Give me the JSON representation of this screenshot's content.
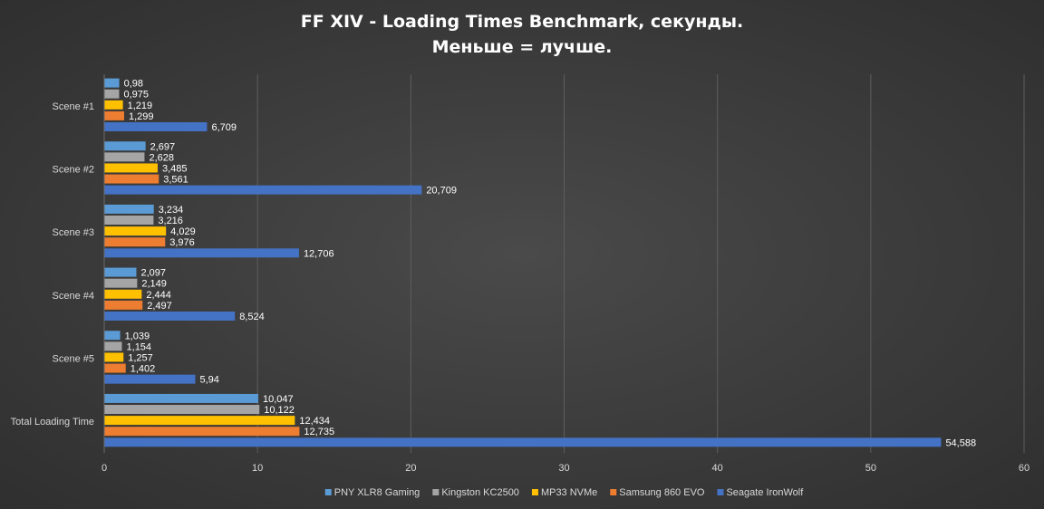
{
  "colors": {
    "PNY XLR8 Gaming": "#5b9bd5",
    "Kingston KC2500": "#a5a5a5",
    "MP33 NVMe": "#ffc000",
    "Samsung 860 EVO": "#ed7d31",
    "Seagate IronWolf": "#4472c4"
  },
  "chart_data": {
    "type": "bar",
    "orientation": "horizontal",
    "title": "FF XIV - Loading Times Benchmark, секунды.",
    "subtitle": "Меньше = лучше.",
    "xlabel": "",
    "ylabel": "",
    "xlim": [
      0,
      60
    ],
    "x_ticks": [
      0,
      10,
      20,
      30,
      40,
      50,
      60
    ],
    "grid": true,
    "legend_position": "bottom",
    "categories": [
      "Scene #1",
      "Scene #2",
      "Scene #3",
      "Scene #4",
      "Scene #5",
      "Total Loading Time"
    ],
    "series": [
      {
        "name": "PNY XLR8 Gaming",
        "values": [
          0.98,
          2.697,
          3.234,
          2.097,
          1.039,
          10.047
        ],
        "labels": [
          "0,98",
          "2,697",
          "3,234",
          "2,097",
          "1,039",
          "10,047"
        ]
      },
      {
        "name": "Kingston KC2500",
        "values": [
          0.975,
          2.628,
          3.216,
          2.149,
          1.154,
          10.122
        ],
        "labels": [
          "0,975",
          "2,628",
          "3,216",
          "2,149",
          "1,154",
          "10,122"
        ]
      },
      {
        "name": "MP33 NVMe",
        "values": [
          1.219,
          3.485,
          4.029,
          2.444,
          1.257,
          12.434
        ],
        "labels": [
          "1,219",
          "3,485",
          "4,029",
          "2,444",
          "1,257",
          "12,434"
        ]
      },
      {
        "name": "Samsung 860 EVO",
        "values": [
          1.299,
          3.561,
          3.976,
          2.497,
          1.402,
          12.735
        ],
        "labels": [
          "1,299",
          "3,561",
          "3,976",
          "2,497",
          "1,402",
          "12,735"
        ]
      },
      {
        "name": "Seagate IronWolf",
        "values": [
          6.709,
          20.709,
          12.706,
          8.524,
          5.94,
          54.588
        ],
        "labels": [
          "6,709",
          "20,709",
          "12,706",
          "8,524",
          "5,94",
          "54,588"
        ]
      }
    ]
  }
}
